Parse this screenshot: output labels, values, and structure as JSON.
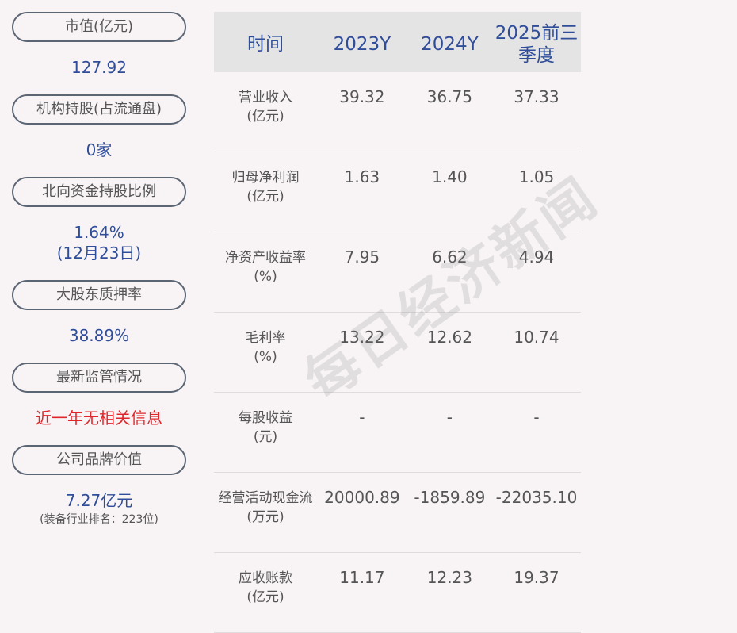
{
  "left": [
    {
      "label": "市值(亿元)",
      "value": "127.92"
    },
    {
      "label": "机构持股(占流通盘)",
      "value": "0家"
    },
    {
      "label": "北向资金持股比例",
      "value": "1.64%",
      "value2": "(12月23日)"
    },
    {
      "label": "大股东质押率",
      "value": "38.89%"
    },
    {
      "label": "最新监管情况",
      "value": "近一年无相关信息"
    },
    {
      "label": "公司品牌价值",
      "value": "7.27亿元",
      "note": "(装备行业排名：223位)"
    }
  ],
  "table": {
    "headers": [
      "时间",
      "2023Y",
      "2024Y",
      "2025前三季度"
    ],
    "rows": [
      {
        "label": "营业收入",
        "unit": "(亿元)",
        "values": [
          "39.32",
          "36.75",
          "37.33"
        ]
      },
      {
        "label": "归母净利润",
        "unit": "(亿元)",
        "values": [
          "1.63",
          "1.40",
          "1.05"
        ]
      },
      {
        "label": "净资产收益率",
        "unit": "(%)",
        "values": [
          "7.95",
          "6.62",
          "4.94"
        ]
      },
      {
        "label": "毛利率",
        "unit": "(%)",
        "values": [
          "13.22",
          "12.62",
          "10.74"
        ]
      },
      {
        "label": "每股收益",
        "unit": "(元)",
        "values": [
          "-",
          "-",
          "-"
        ]
      },
      {
        "label": "经营活动现金流",
        "unit": "(万元)",
        "values": [
          "20000.89",
          "-1859.89",
          "-22035.10"
        ]
      },
      {
        "label": "应收账款",
        "unit": "(亿元)",
        "values": [
          "11.17",
          "12.23",
          "19.37"
        ]
      }
    ]
  },
  "watermark": "每日经济新闻",
  "colors": {
    "accent": "#2f4d99",
    "alert": "#e0262a",
    "header_bg": "#e4e4e4",
    "background": "#f8f4f6"
  }
}
